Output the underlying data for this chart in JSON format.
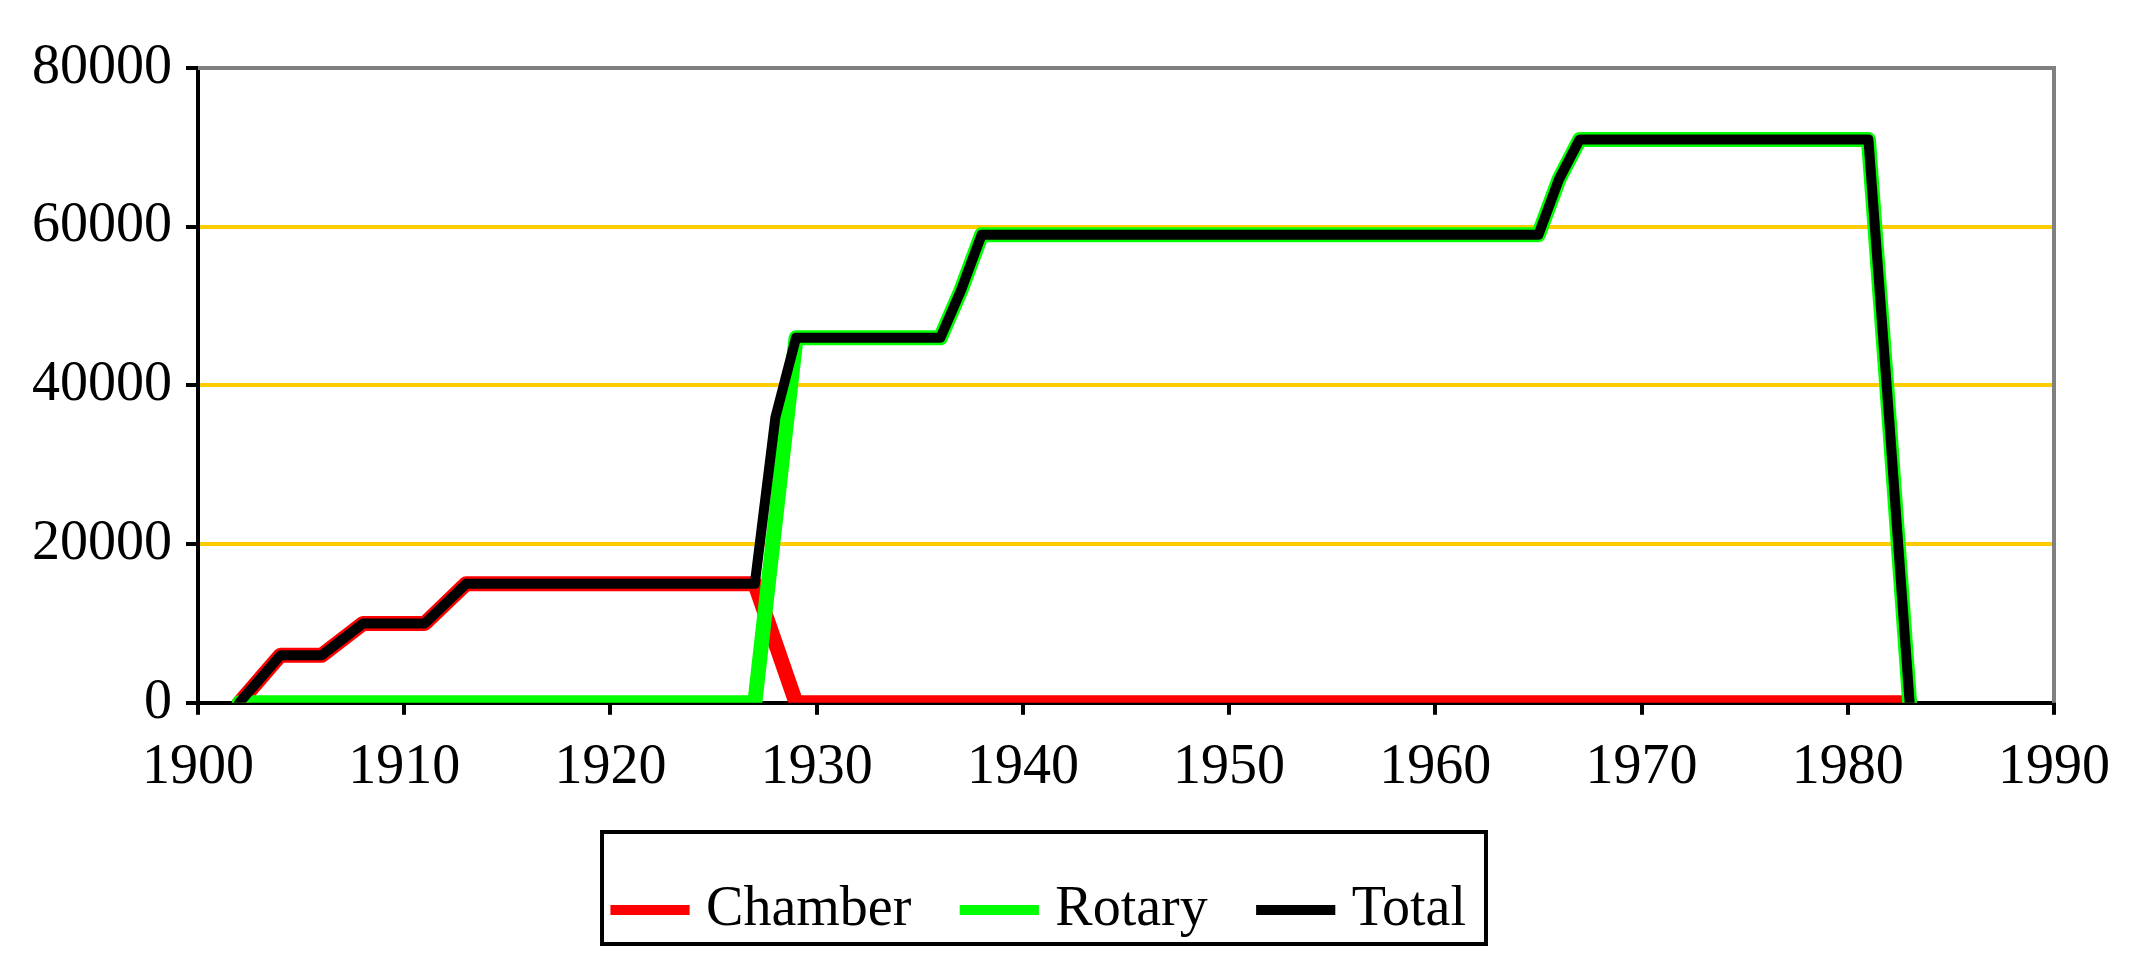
{
  "chart_data": {
    "type": "line",
    "xlim": [
      1900,
      1990
    ],
    "xticks": [
      1900,
      1910,
      1920,
      1930,
      1940,
      1950,
      1960,
      1970,
      1980,
      1990
    ],
    "ylim": [
      0,
      80000
    ],
    "yticks": [
      0,
      20000,
      40000,
      60000,
      80000
    ],
    "grid": "y",
    "legend": "bottom",
    "marker": "none",
    "line_style": "solid",
    "series": [
      {
        "name": "Chamber",
        "color": "#ff0000",
        "x": [
          1902,
          1904,
          1906,
          1908,
          1911,
          1913,
          1927,
          1928,
          1929,
          1983
        ],
        "values": [
          0,
          6000,
          6000,
          10000,
          10000,
          15000,
          15000,
          7500,
          0,
          0
        ]
      },
      {
        "name": "Rotary",
        "color": "#00ff00",
        "x": [
          1902,
          1927,
          1928,
          1929,
          1936,
          1937,
          1938,
          1965,
          1966,
          1967,
          1981,
          1982,
          1983
        ],
        "values": [
          0,
          0,
          23000,
          46000,
          46000,
          52000,
          59000,
          59000,
          66000,
          71000,
          71000,
          36000,
          0
        ]
      },
      {
        "name": "Total",
        "color": "#000000",
        "x": [
          1902,
          1904,
          1906,
          1908,
          1911,
          1913,
          1927,
          1928,
          1929,
          1936,
          1937,
          1938,
          1965,
          1966,
          1967,
          1981,
          1982,
          1983
        ],
        "values": [
          0,
          6000,
          6000,
          10000,
          10000,
          15000,
          15000,
          36000,
          46000,
          46000,
          52000,
          59000,
          59000,
          66000,
          71000,
          71000,
          36000,
          0
        ]
      }
    ]
  }
}
